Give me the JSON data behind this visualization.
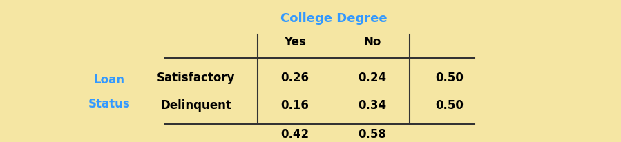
{
  "background_color": "#f5e6a3",
  "title": "College Degree",
  "title_color": "#3399ff",
  "title_fontsize": 13,
  "col_headers": [
    "Yes",
    "No"
  ],
  "col_header_color": "#000000",
  "col_header_fontsize": 12,
  "row_label_group": "Loan\nStatus",
  "row_label_group_color": "#3399ff",
  "row_label_group_fontsize": 12,
  "row_labels": [
    "Satisfactory",
    "Delinquent"
  ],
  "row_label_color": "#000000",
  "row_label_fontsize": 12,
  "data": [
    [
      0.26,
      0.24,
      0.5
    ],
    [
      0.16,
      0.34,
      0.5
    ]
  ],
  "col_totals": [
    0.42,
    0.58
  ],
  "data_color": "#000000",
  "data_fontsize": 12,
  "line_color": "#333333",
  "line_width": 1.5
}
